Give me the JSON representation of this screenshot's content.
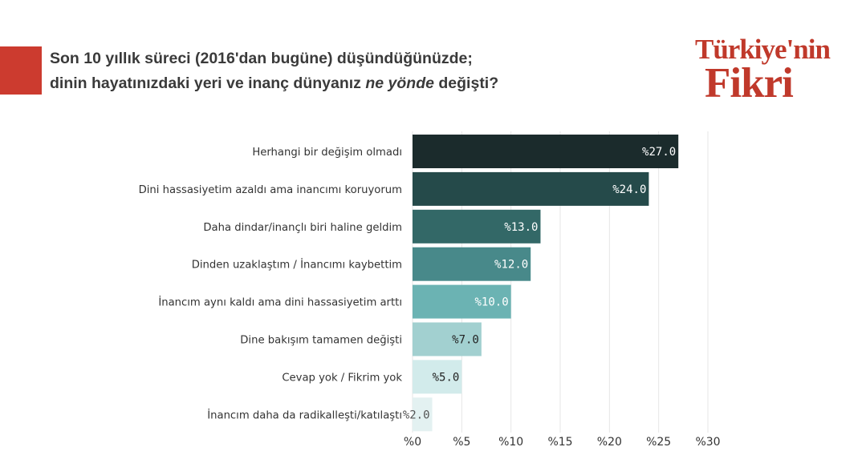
{
  "header": {
    "title_line1": "Son 10 yıllık süreci (2016'dan bugüne) düşündüğünüzde;",
    "title_line2_pre": "dinin hayatınızdaki yeri ve inanç dünyanız ",
    "title_line2_em": "ne yönde",
    "title_line2_post": " değişti?"
  },
  "logo": {
    "line1": "Türkiye'nin",
    "line2": "Fikri"
  },
  "colors": {
    "accent": "#cc3b2f",
    "brand": "#c0392b",
    "grid": "#e6e6e6"
  },
  "chart_data": {
    "type": "bar",
    "orientation": "horizontal",
    "categories": [
      "Herhangi bir değişim olmadı",
      "Dini hassasiyetim azaldı ama inancımı koruyorum",
      "Daha dindar/inançlı biri haline geldim",
      "Dinden uzaklaştım / İnancımı kaybettim",
      "İnancım aynı kaldı ama dini hassasiyetim arttı",
      "Dine bakışım tamamen değişti",
      "Cevap yok / Fikrim yok",
      "İnancım daha da radikalleşti/katılaştı"
    ],
    "values": [
      27.0,
      24.0,
      13.0,
      12.0,
      10.0,
      7.0,
      5.0,
      2.0
    ],
    "value_labels": [
      "%27.0",
      "%24.0",
      "%13.0",
      "%12.0",
      "%10.0",
      "%7.0",
      "%5.0",
      "%2.0"
    ],
    "bar_colors": [
      "#1b2b2c",
      "#254a4a",
      "#336867",
      "#48898a",
      "#6bb3b3",
      "#a2d0d0",
      "#d2ebeb",
      "#e3f1f1"
    ],
    "label_colors": [
      "#ffffff",
      "#ffffff",
      "#ffffff",
      "#ffffff",
      "#ffffff",
      "#222222",
      "#222222",
      "#555555"
    ],
    "xlim": [
      0,
      30
    ],
    "xticks": [
      0,
      5,
      10,
      15,
      20,
      25,
      30
    ],
    "xtick_labels": [
      "%0",
      "%5",
      "%10",
      "%15",
      "%20",
      "%25",
      "%30"
    ],
    "grid": true,
    "xlabel": "",
    "ylabel": "",
    "legend": "none"
  }
}
